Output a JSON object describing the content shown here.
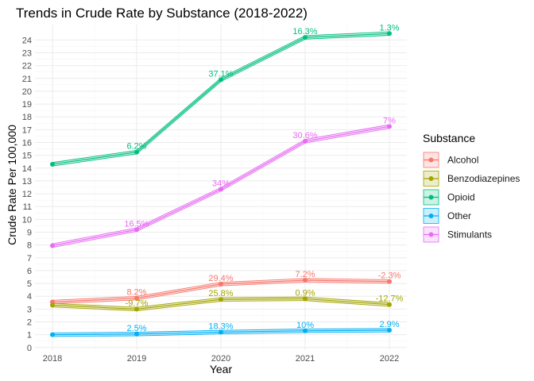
{
  "chart_data": {
    "type": "line",
    "title": "Trends in Crude Rate by Substance (2018-2022)",
    "xlabel": "Year",
    "ylabel": "Crude Rate Per 100,000",
    "x": [
      "2018",
      "2019",
      "2020",
      "2021",
      "2022"
    ],
    "yticks": [
      0,
      1,
      2,
      3,
      4,
      5,
      6,
      7,
      8,
      9,
      10,
      11,
      12,
      13,
      14,
      15,
      16,
      17,
      18,
      19,
      20,
      21,
      22,
      23,
      24
    ],
    "ylim": [
      -0.2,
      25.2
    ],
    "grid": true,
    "legend": {
      "title": "Substance",
      "position": "right"
    },
    "series": [
      {
        "name": "Alcohol",
        "color": "#F8766D",
        "values": [
          3.55,
          3.85,
          4.95,
          5.25,
          5.15
        ],
        "labels": [
          "",
          "8.2%",
          "29.4%",
          "7.2%",
          "-2.3%"
        ]
      },
      {
        "name": "Benzodiazepines",
        "color": "#A3A500",
        "values": [
          3.3,
          3.0,
          3.75,
          3.8,
          3.35
        ],
        "labels": [
          "",
          "-9.7%",
          "25.8%",
          "0.9%",
          "-12.7%"
        ]
      },
      {
        "name": "Opioid",
        "color": "#00BF7D",
        "values": [
          14.3,
          15.25,
          20.9,
          24.2,
          24.5
        ],
        "labels": [
          "",
          "6.2%",
          "37.1%",
          "16.3%",
          "1.3%"
        ]
      },
      {
        "name": "Other",
        "color": "#00B0F6",
        "values": [
          1.0,
          1.05,
          1.2,
          1.3,
          1.35
        ],
        "labels": [
          "",
          "2.5%",
          "18.3%",
          "10%",
          "2.9%"
        ]
      },
      {
        "name": "Stimulants",
        "color": "#E76BF3",
        "values": [
          7.95,
          9.2,
          12.35,
          16.1,
          17.25
        ],
        "labels": [
          "",
          "16.5%",
          "34%",
          "30.6%",
          "7%"
        ]
      }
    ]
  }
}
